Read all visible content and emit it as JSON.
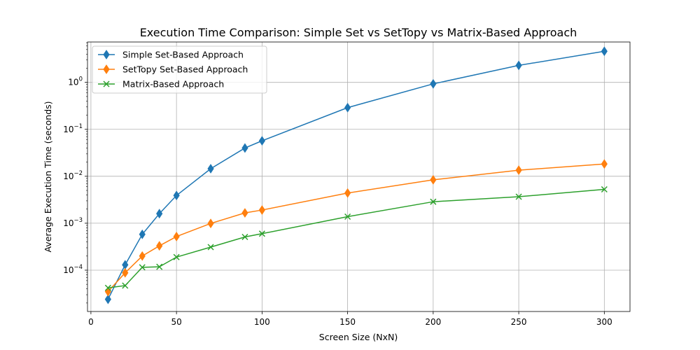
{
  "chart_data": {
    "type": "line",
    "title": "Execution Time Comparison: Simple Set vs SetTopy vs Matrix-Based Approach",
    "xlabel": "Screen Size (NxN)",
    "ylabel": "Average Execution Time (seconds)",
    "xlim": [
      -2,
      315
    ],
    "ylim_log10": [
      -4.88,
      0.86
    ],
    "yscale": "log",
    "grid": true,
    "legend_position": "top-left",
    "x_ticks": [
      {
        "value": 0,
        "label": "0"
      },
      {
        "value": 50,
        "label": "50"
      },
      {
        "value": 100,
        "label": "100"
      },
      {
        "value": 150,
        "label": "150"
      },
      {
        "value": 200,
        "label": "200"
      },
      {
        "value": 250,
        "label": "250"
      },
      {
        "value": 300,
        "label": "300"
      }
    ],
    "y_ticks": [
      {
        "value": 0.0001,
        "base": "10",
        "exp": "−4"
      },
      {
        "value": 0.001,
        "base": "10",
        "exp": "−3"
      },
      {
        "value": 0.01,
        "base": "10",
        "exp": "−2"
      },
      {
        "value": 0.1,
        "base": "10",
        "exp": "−1"
      },
      {
        "value": 1,
        "base": "10",
        "exp": "0"
      }
    ],
    "series": [
      {
        "name": "Simple Set-Based Approach",
        "color": "#1f77b4",
        "marker": "diamond",
        "x": [
          10,
          20,
          30,
          40,
          50,
          70,
          90,
          100,
          150,
          200,
          250,
          300
        ],
        "values": [
          2.4e-05,
          0.00013,
          0.00058,
          0.0016,
          0.0039,
          0.0145,
          0.04,
          0.057,
          0.29,
          0.93,
          2.3,
          4.6
        ]
      },
      {
        "name": "SetTopy Set-Based Approach",
        "color": "#ff7f0e",
        "marker": "diamond",
        "x": [
          10,
          20,
          30,
          40,
          50,
          70,
          90,
          100,
          150,
          200,
          250,
          300
        ],
        "values": [
          3.5e-05,
          8.8e-05,
          0.0002,
          0.00033,
          0.00052,
          0.00099,
          0.00166,
          0.00191,
          0.0044,
          0.0084,
          0.0135,
          0.0183
        ]
      },
      {
        "name": "Matrix-Based Approach",
        "color": "#2ca02c",
        "marker": "x",
        "x": [
          10,
          20,
          30,
          40,
          50,
          70,
          90,
          100,
          150,
          200,
          250,
          300
        ],
        "values": [
          4.2e-05,
          4.7e-05,
          0.000115,
          0.000118,
          0.00019,
          0.00031,
          0.00051,
          0.0006,
          0.00138,
          0.00287,
          0.00367,
          0.00527
        ]
      }
    ]
  }
}
